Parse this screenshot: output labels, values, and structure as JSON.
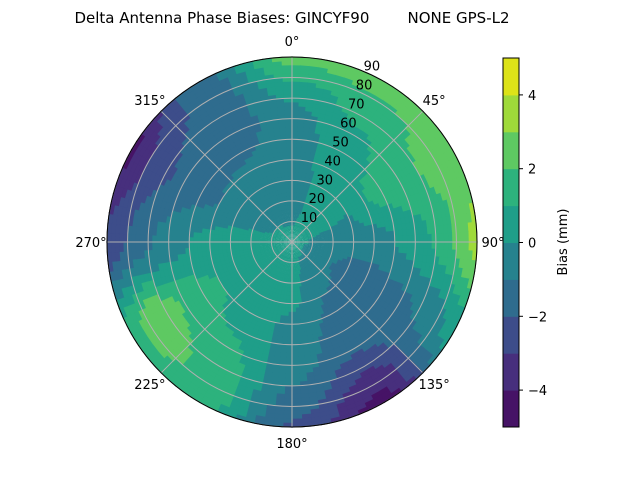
{
  "chart_data": {
    "type": "heatmap",
    "subtype": "polar-filled-contour",
    "title": "Delta Antenna Phase Biases: GINCYF90        NONE GPS-L2",
    "theta_zero": "top",
    "theta_direction": "clockwise",
    "theta_tick_labels": [
      "0°",
      "45°",
      "90°",
      "135°",
      "180°",
      "225°",
      "270°",
      "315°"
    ],
    "theta_ticks": [
      0,
      45,
      90,
      135,
      180,
      225,
      270,
      315
    ],
    "radial_ticks": [
      10,
      20,
      30,
      40,
      50,
      60,
      70,
      80,
      90
    ],
    "radial_tick_labels": [
      "10",
      "20",
      "30",
      "40",
      "50",
      "60",
      "70",
      "80",
      "90"
    ],
    "rlim": [
      0,
      90
    ],
    "grid": true,
    "azimuth": [
      0,
      30,
      60,
      90,
      120,
      150,
      180,
      210,
      240,
      270,
      300,
      330
    ],
    "zenith": [
      0,
      15,
      30,
      45,
      60,
      75,
      90
    ],
    "values": [
      [
        0.3,
        -0.3,
        -0.5,
        -0.5,
        -0.5,
        0.5,
        2.5
      ],
      [
        0.3,
        0.2,
        0.3,
        0.5,
        0.8,
        1.5,
        2.6
      ],
      [
        0.3,
        0.2,
        0.0,
        1.2,
        1.6,
        2.2,
        2.3
      ],
      [
        0.3,
        -0.3,
        -0.5,
        -0.3,
        0.5,
        1.5,
        3.5
      ],
      [
        0.3,
        -0.5,
        -1.5,
        -1.5,
        -1.2,
        -0.8,
        0.5
      ],
      [
        0.3,
        -0.3,
        -1.0,
        -1.3,
        -1.7,
        -3.3,
        -4.5
      ],
      [
        0.3,
        0.3,
        0.2,
        -0.5,
        -0.6,
        -1.2,
        -2.2
      ],
      [
        0.3,
        0.5,
        0.6,
        0.7,
        1.2,
        1.6,
        1.5
      ],
      [
        0.3,
        0.5,
        0.7,
        1.2,
        1.8,
        3.0,
        1.5
      ],
      [
        0.3,
        0.4,
        0.5,
        0.2,
        -0.5,
        -1.5,
        -2.8
      ],
      [
        0.3,
        -0.2,
        -0.5,
        -1.2,
        -1.6,
        -2.5,
        -4.3
      ],
      [
        0.3,
        -0.2,
        -0.5,
        -1.0,
        -1.5,
        -1.7,
        -1.5
      ]
    ],
    "levels": [
      -5,
      -4,
      -3,
      -2,
      -1,
      0,
      1,
      2,
      3,
      4,
      5
    ],
    "level_colors": [
      "#461366",
      "#472f7d",
      "#3d4d8a",
      "#2f6c8e",
      "#26828e",
      "#1f9e89",
      "#2db27d",
      "#5ec962",
      "#9fda3a",
      "#dde318"
    ],
    "colorbar": {
      "label": "Bias (mm)",
      "ticks": [
        -4,
        -2,
        0,
        2,
        4
      ],
      "tick_labels": [
        "−4",
        "−2",
        "0",
        "2",
        "4"
      ],
      "range": [
        -5,
        5
      ]
    }
  }
}
